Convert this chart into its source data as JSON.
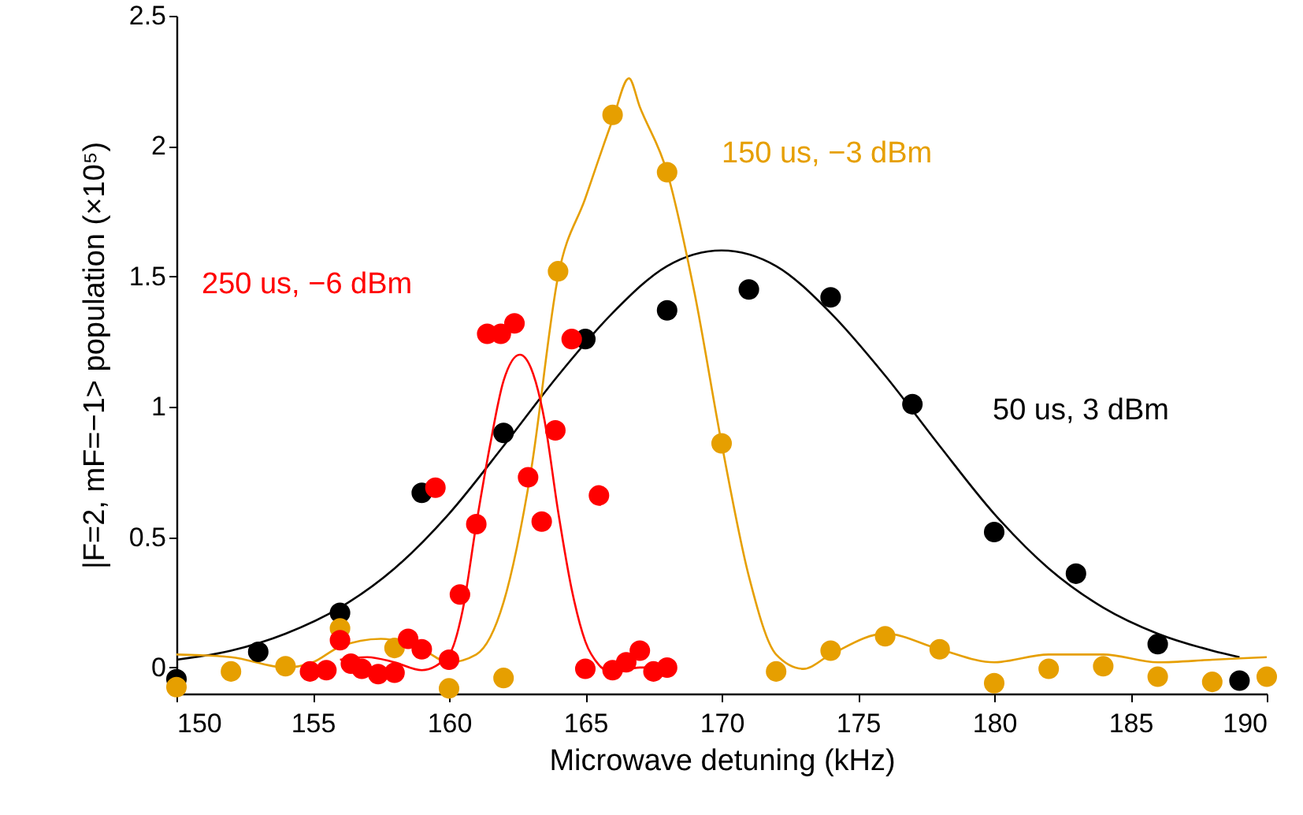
{
  "chart_data": {
    "type": "scatter",
    "xlabel": "Microwave detuning (kHz)",
    "ylabel": "|F=2, mF=−1> population (×10⁵)",
    "xlim": [
      150,
      190
    ],
    "xticks": [
      150,
      155,
      160,
      165,
      170,
      175,
      180,
      185,
      190
    ],
    "ylim": [
      -0.1,
      2.5
    ],
    "yticks": [
      0,
      0.5,
      1,
      1.5,
      2,
      2.5
    ],
    "grid": false,
    "marker": "circle",
    "series": [
      {
        "type": "line",
        "marker": "none",
        "color": "#000000",
        "x": [
          150,
          152,
          154,
          156,
          158,
          160,
          162,
          164,
          166,
          168,
          170,
          172,
          174,
          176,
          178,
          180,
          182,
          184,
          186,
          188,
          189
        ],
        "values": [
          0.03,
          0.065,
          0.13,
          0.23,
          0.38,
          0.59,
          0.85,
          1.12,
          1.36,
          1.54,
          1.6,
          1.54,
          1.36,
          1.12,
          0.85,
          0.59,
          0.38,
          0.23,
          0.13,
          0.065,
          0.04
        ]
      },
      {
        "type": "line",
        "marker": "none",
        "color": "#e69f00",
        "x": [
          150,
          152,
          154,
          155,
          156,
          157.5,
          159,
          160,
          161,
          162,
          163,
          164,
          165,
          166,
          166.6,
          167,
          168,
          169,
          170,
          171,
          172,
          173,
          174,
          176,
          178,
          180,
          182,
          184,
          186,
          188,
          190
        ],
        "values": [
          0.05,
          0.04,
          0.0,
          0.02,
          0.08,
          0.11,
          0.07,
          0.02,
          0.05,
          0.25,
          0.75,
          1.5,
          1.8,
          2.1,
          2.26,
          2.15,
          1.9,
          1.44,
          0.86,
          0.35,
          0.05,
          -0.005,
          0.05,
          0.13,
          0.07,
          0.02,
          0.05,
          0.05,
          0.02,
          0.03,
          0.04
        ]
      },
      {
        "type": "line",
        "marker": "none",
        "color": "#ff0000",
        "x": [
          156,
          157,
          158,
          159,
          160,
          160.5,
          161,
          161.5,
          162,
          162.6,
          163,
          163.5,
          164,
          164.5,
          165,
          165.5,
          166,
          167,
          168
        ],
        "values": [
          0.03,
          0.04,
          0.02,
          -0.01,
          0.05,
          0.22,
          0.55,
          0.85,
          1.1,
          1.2,
          1.15,
          0.95,
          0.6,
          0.3,
          0.1,
          0.01,
          -0.02,
          0.0,
          0.0
        ]
      },
      {
        "name": "50 us, 3 dBm",
        "color": "#000000",
        "x": [
          150,
          153,
          156,
          159,
          162,
          165,
          168,
          171,
          174,
          177,
          180,
          183,
          186,
          189
        ],
        "values": [
          -0.045,
          0.06,
          0.21,
          0.67,
          0.9,
          1.26,
          1.37,
          1.45,
          1.42,
          1.01,
          0.52,
          0.36,
          0.09,
          -0.05
        ]
      },
      {
        "name": "150 us, −3 dBm",
        "color": "#e69f00",
        "x": [
          150,
          152,
          154,
          156,
          158,
          160,
          162,
          164,
          166,
          168,
          170,
          172,
          174,
          176,
          178,
          180,
          182,
          184,
          186,
          188,
          190
        ],
        "values": [
          -0.075,
          -0.015,
          0.005,
          0.15,
          0.075,
          -0.08,
          -0.04,
          1.52,
          2.12,
          1.9,
          0.86,
          -0.015,
          0.065,
          0.12,
          0.07,
          -0.06,
          -0.005,
          0.005,
          -0.035,
          -0.055,
          -0.035
        ]
      },
      {
        "name": "250 us, −6 dBm",
        "color": "#ff0000",
        "x": [
          154.9,
          155.5,
          156,
          156.4,
          156.8,
          157.4,
          158,
          158.5,
          159,
          159.5,
          160,
          160.4,
          161,
          161.4,
          161.9,
          162.4,
          162.9,
          163.4,
          163.9,
          164.5,
          165,
          165.5,
          166,
          166.5,
          167,
          167.5,
          168
        ],
        "values": [
          -0.015,
          -0.01,
          0.105,
          0.015,
          -0.005,
          -0.025,
          -0.02,
          0.11,
          0.07,
          0.69,
          0.03,
          0.28,
          0.55,
          1.28,
          1.28,
          1.32,
          0.73,
          0.56,
          0.91,
          1.26,
          -0.005,
          0.66,
          -0.01,
          0.02,
          0.065,
          -0.015,
          0.0
        ]
      }
    ]
  }
}
